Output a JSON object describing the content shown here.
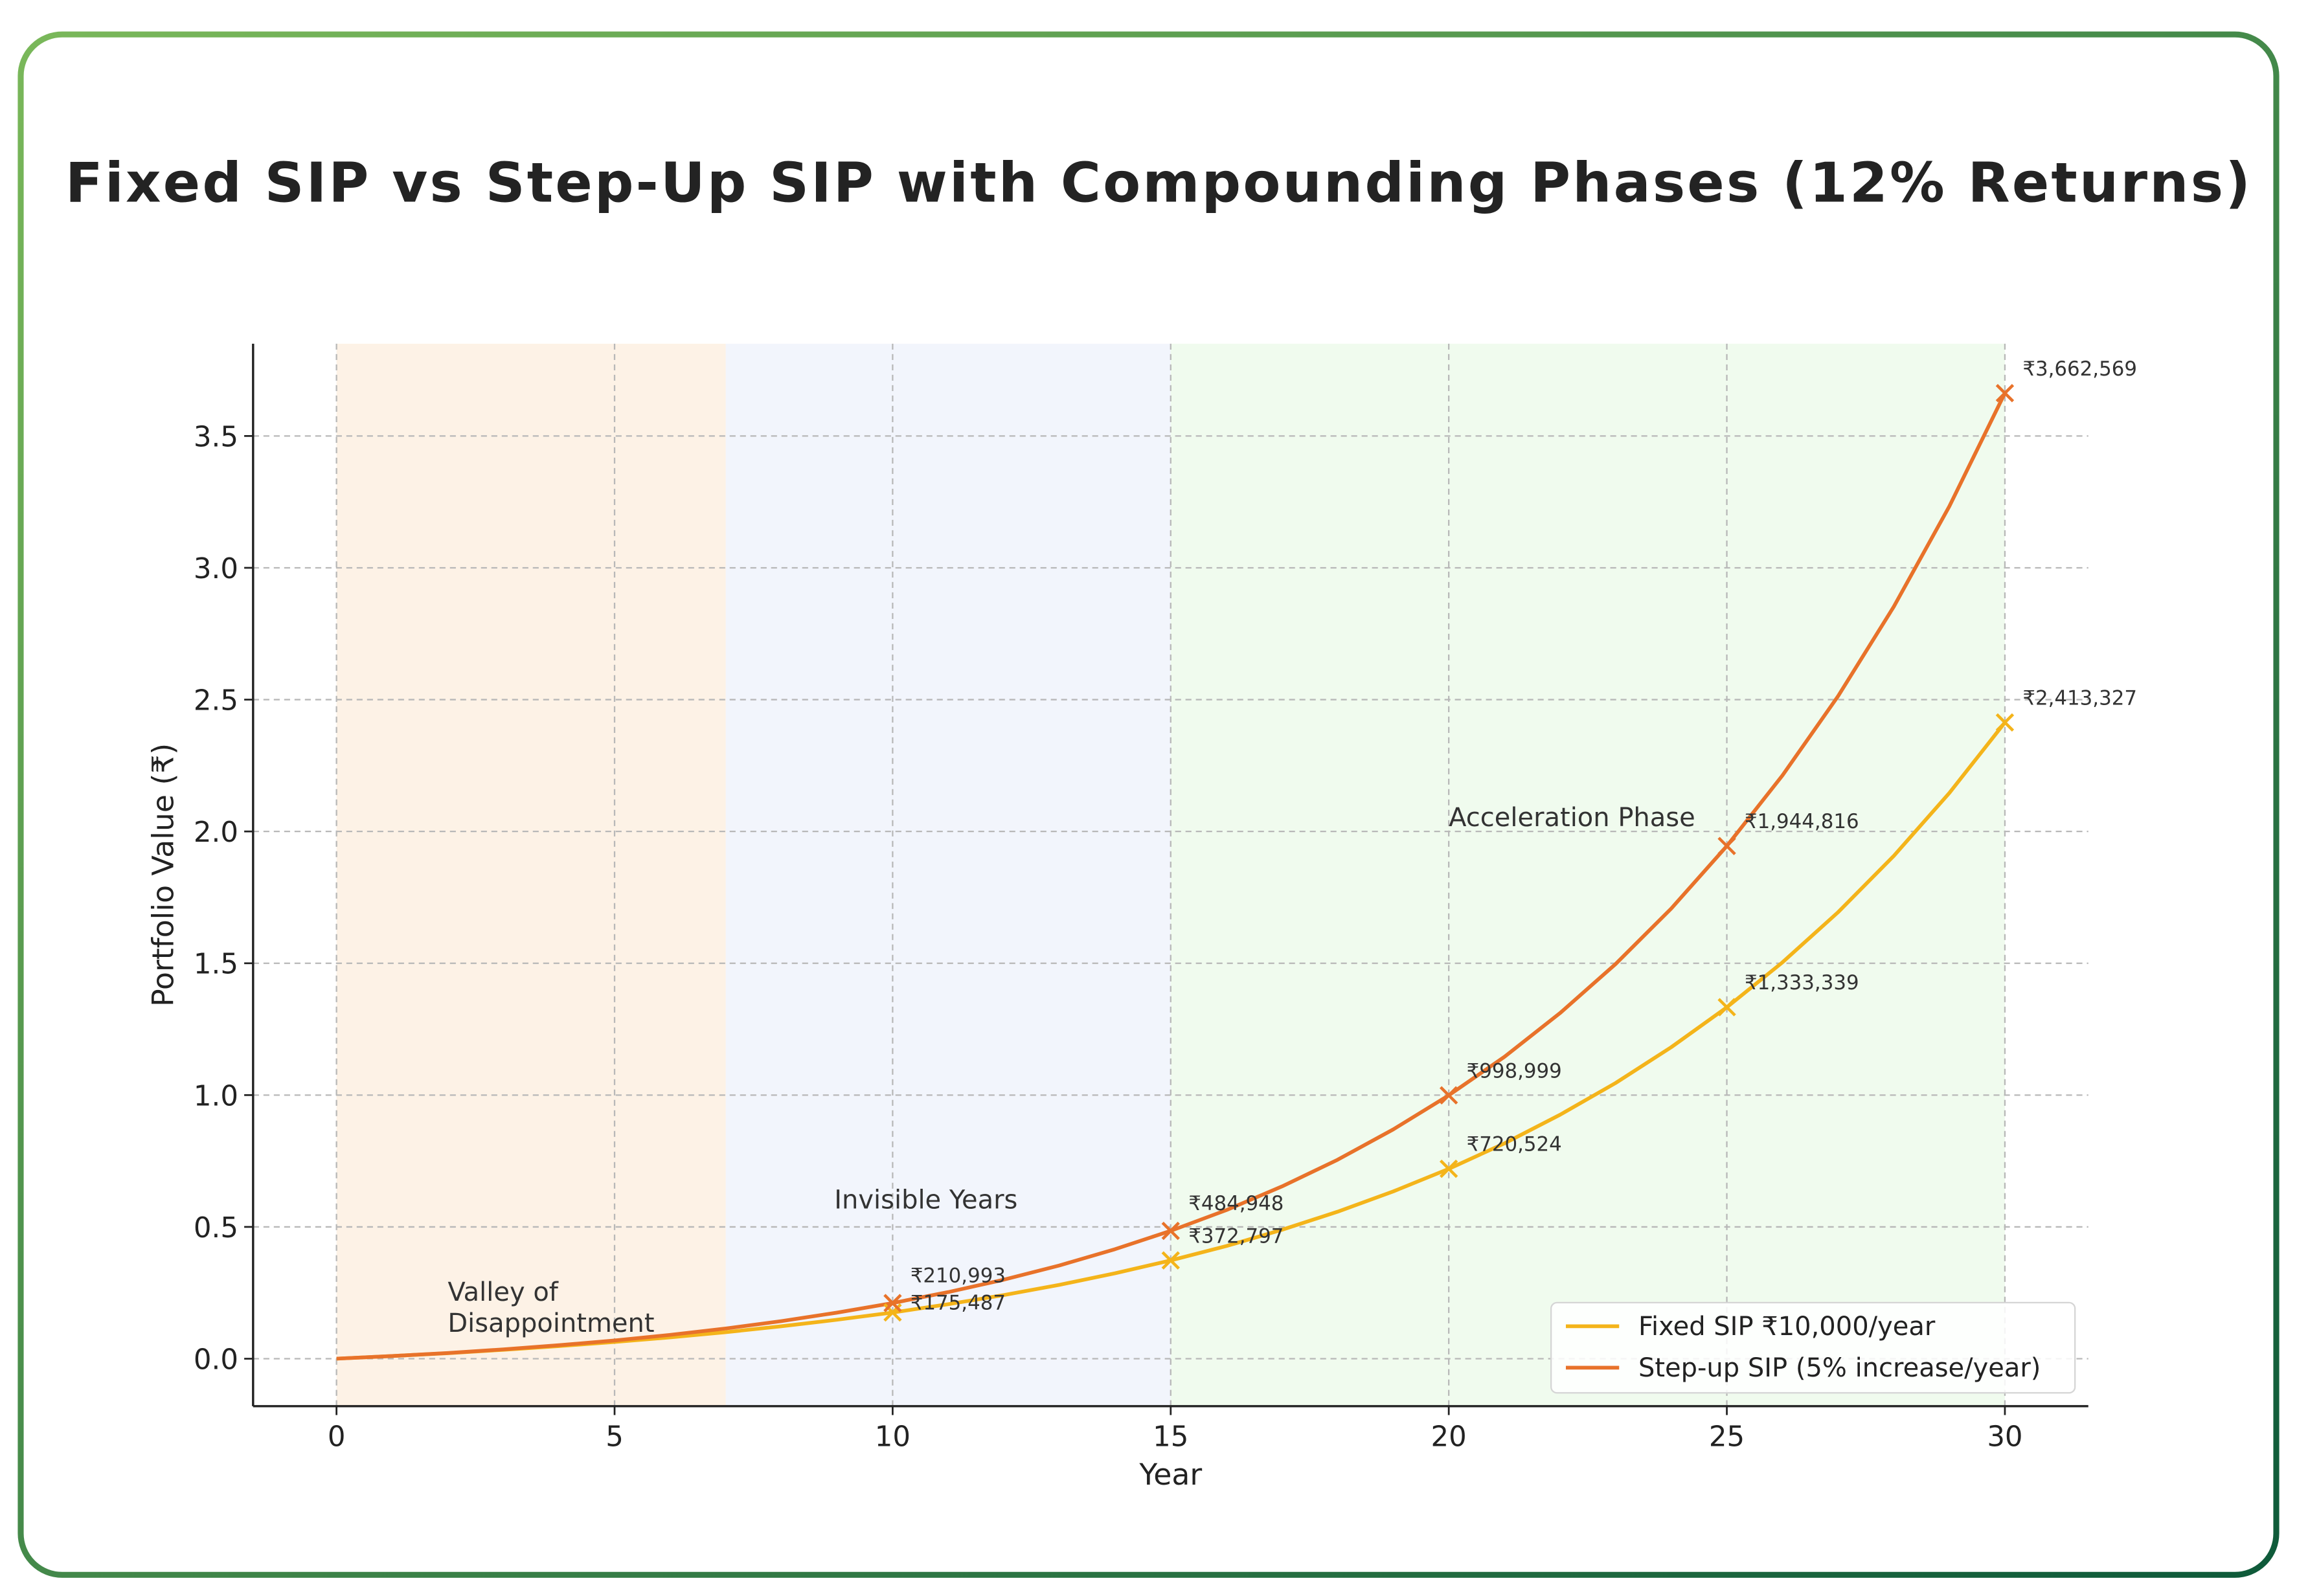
{
  "chart_data": {
    "type": "line",
    "title": "Fixed SIP vs Step-Up SIP with Compounding Phases (12% Returns)",
    "xlabel": "Year",
    "ylabel": "Portfolio Value (₹)",
    "xlim": [
      -1.5,
      31.5
    ],
    "ylim": [
      -0.18,
      3.85
    ],
    "y_unit_scale": 1000000,
    "x_ticks": [
      0,
      5,
      10,
      15,
      20,
      25,
      30
    ],
    "x_tick_labels": [
      "0",
      "5",
      "10",
      "15",
      "20",
      "25",
      "30"
    ],
    "y_ticks": [
      0,
      0.5,
      1.0,
      1.5,
      2.0,
      2.5,
      3.0,
      3.5
    ],
    "y_tick_labels": [
      "0.0",
      "0.5",
      "1.0",
      "1.5",
      "2.0",
      "2.5",
      "3.0",
      "3.5"
    ],
    "grid": true,
    "legend_position": "bottom-right",
    "phases": [
      {
        "start": 0,
        "end": 7,
        "color": "#fdf2e6"
      },
      {
        "start": 7,
        "end": 15,
        "color": "#f2f5fc"
      },
      {
        "start": 15,
        "end": 30,
        "color": "#f0fbee"
      }
    ],
    "annotations": [
      {
        "lines": [
          "Valley of",
          "Disappointment"
        ],
        "x": 2,
        "y": 0.22
      },
      {
        "lines": [
          "Invisible Years"
        ],
        "x": 8.95,
        "y": 0.57
      },
      {
        "lines": [
          "Acceleration Phase"
        ],
        "x": 20,
        "y": 2.02
      }
    ],
    "x": [
      0,
      1,
      2,
      3,
      4,
      5,
      6,
      7,
      8,
      9,
      10,
      11,
      12,
      13,
      14,
      15,
      16,
      17,
      18,
      19,
      20,
      21,
      22,
      23,
      24,
      25,
      26,
      27,
      28,
      29,
      30
    ],
    "marker_years": [
      10,
      15,
      20,
      25,
      30
    ],
    "series": [
      {
        "name": "Fixed SIP ₹10,000/year",
        "color": "#f4b41a",
        "values": [
          0,
          10000,
          21200,
          33744,
          47793,
          63528,
          81152,
          100890,
          122997,
          147757,
          175487,
          206546,
          241331,
          280291,
          323926,
          372797,
          427533,
          488837,
          557497,
          634397,
          720524,
          816987,
          925026,
          1046029,
          1181552,
          1333339,
          1503339,
          1693740,
          1906989,
          2145828,
          2413327
        ],
        "marker_labels": [
          "₹175,487",
          "₹372,797",
          "₹720,524",
          "₹1,333,339",
          "₹2,413,327"
        ]
      },
      {
        "name": "Step-up SIP (5% increase/year)",
        "color": "#e8722a",
        "values": [
          0,
          10000,
          21700,
          35329,
          51145,
          69437,
          90532,
          114797,
          142644,
          174536,
          210993,
          252602,
          300017,
          353978,
          415311,
          484948,
          563931,
          653432,
          754764,
          869402,
          998999,
          1145412,
          1310721,
          1497260,
          1707647,
          1944816,
          2212057,
          2513061,
          2851962,
          3233399,
          3662569
        ],
        "marker_labels": [
          "₹210,993",
          "₹484,948",
          "₹998,999",
          "₹1,944,816",
          "₹3,662,569"
        ]
      }
    ]
  },
  "frame": {
    "border_start": "#7ab85a",
    "border_end": "#0e5a3a"
  }
}
